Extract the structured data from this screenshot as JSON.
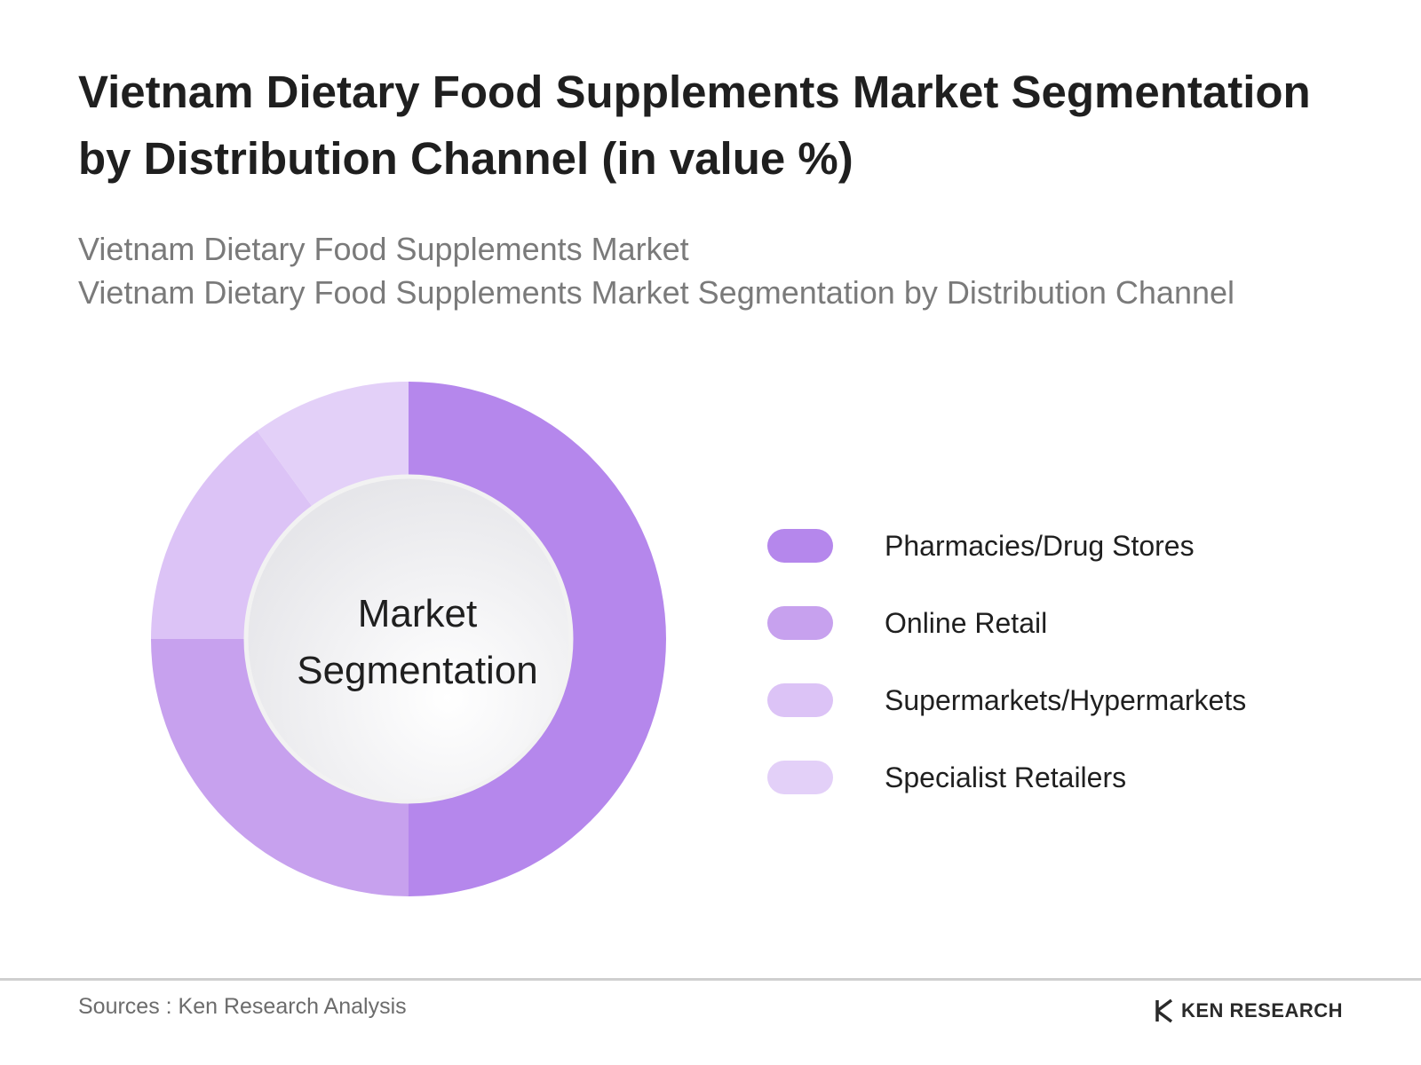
{
  "header": {
    "title_line1": "Vietnam Dietary Food Supplements Market Segmentation",
    "title_line2": "by Distribution Channel (in value %)",
    "subtitle_line1": "Vietnam Dietary Food Supplements Market",
    "subtitle_line2": "Vietnam Dietary Food Supplements Market Segmentation by Distribution Channel"
  },
  "chart_data": {
    "type": "pie",
    "variant": "donut",
    "center_label_line1": "Market",
    "center_label_line2": "Segmentation",
    "categories": [
      "Pharmacies/Drug Stores",
      "Online Retail",
      "Supermarkets/Hypermarkets",
      "Specialist Retailers"
    ],
    "values": [
      50,
      25,
      15,
      10
    ],
    "colors": [
      "#b587ec",
      "#c7a1ee",
      "#dcc3f6",
      "#e3d0f8"
    ],
    "legend_position": "right"
  },
  "footer": {
    "source": "Sources : Ken Research Analysis",
    "brand": "KEN RESEARCH"
  }
}
